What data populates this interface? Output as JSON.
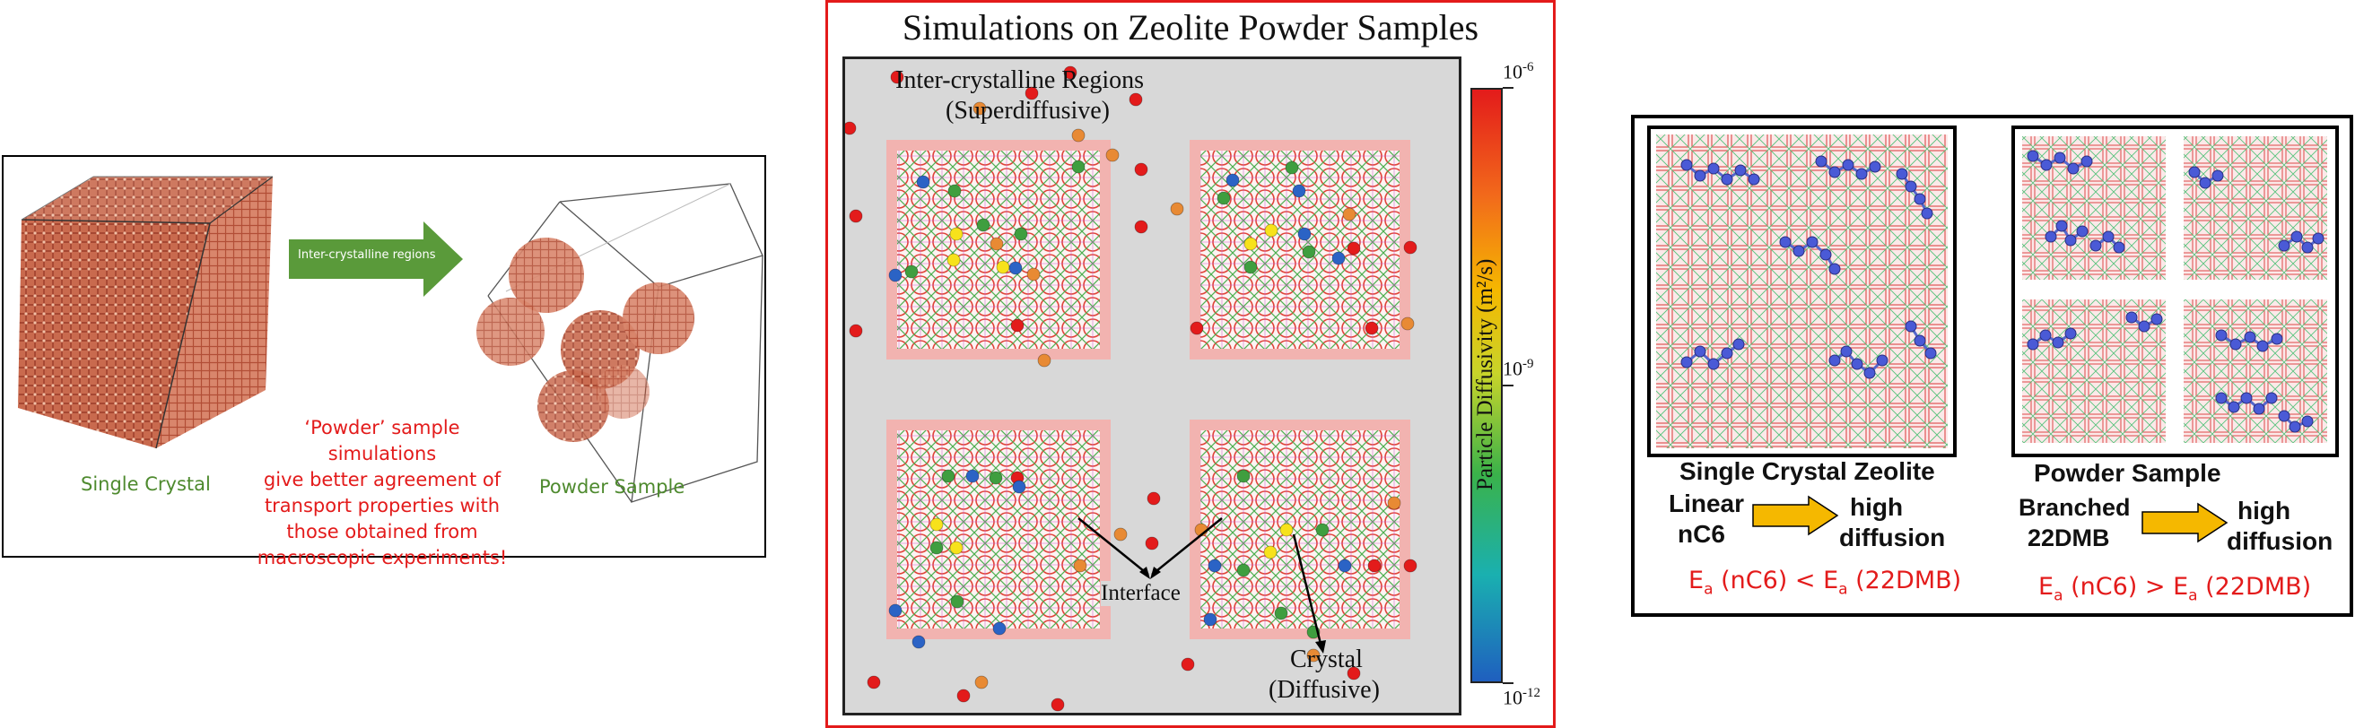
{
  "left": {
    "arrow_label": "Inter-crystalline regions",
    "single_crystal": "Single Crystal",
    "powder_sample": "Powder Sample",
    "note_lines": [
      "‘Powder’ sample simulations",
      "give better agreement of",
      "transport properties with",
      "those obtained from",
      "macroscopic experiments!"
    ]
  },
  "middle": {
    "title": "Simulations on Zeolite Powder Samples",
    "region_label_1": "Inter-crystalline Regions",
    "region_label_2": "(Superdiffusive)",
    "interface": "Interface",
    "crystal_1": "Crystal",
    "crystal_2": "(Diffusive)",
    "colorbar": {
      "label": "Particle Diffusivity (m²/s)",
      "ticks": [
        {
          "base": "10",
          "exp": "-6"
        },
        {
          "base": "10",
          "exp": "-9"
        },
        {
          "base": "10",
          "exp": "-12"
        }
      ]
    }
  },
  "right": {
    "single_title": "Single Crystal Zeolite",
    "single_mol_1": "Linear",
    "single_mol_2": "nC6",
    "single_result_1": "high",
    "single_result_2": "diffusion",
    "powder_title": "Powder Sample",
    "powder_mol_1": "Branched",
    "powder_mol_2": "22DMB",
    "powder_result_1": "high",
    "powder_result_2": "diffusion",
    "eq1": {
      "e": "E",
      "a": "a",
      "lhs": " (nC6) < ",
      "rhs": " (22DMB)"
    },
    "eq2": {
      "e": "E",
      "a": "a",
      "lhs": " (nC6) > ",
      "rhs": " (22DMB)"
    }
  },
  "colors": {
    "red": "#e31b1b",
    "green_text": "#4e8a2e",
    "arrow_green": "#5a9a3a",
    "arrow_yellow": "#f5b800"
  }
}
